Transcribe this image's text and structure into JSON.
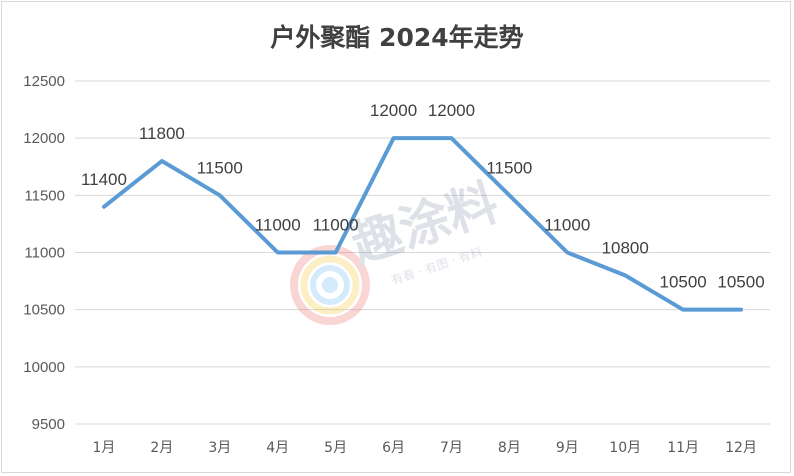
{
  "chart_data": {
    "type": "line",
    "title": "户外聚酯 2024年走势",
    "categories": [
      "1月",
      "2月",
      "3月",
      "4月",
      "5月",
      "6月",
      "7月",
      "8月",
      "9月",
      "10月",
      "11月",
      "12月"
    ],
    "series": [
      {
        "values": [
          11400,
          11800,
          11500,
          11000,
          11000,
          12000,
          12000,
          11500,
          11000,
          10800,
          10500,
          10500
        ]
      }
    ],
    "ylim": [
      9500,
      12500
    ],
    "yticks": [
      9500,
      10000,
      10500,
      11000,
      11500,
      12000,
      12500
    ],
    "grid": true,
    "line_color": "#5b9bd5",
    "data_labels": true
  },
  "watermark": {
    "text": "趣涂料",
    "sub": "有看 · 有图 · 有料"
  }
}
